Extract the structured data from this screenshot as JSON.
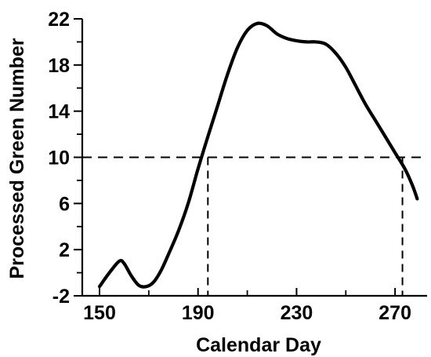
{
  "chart_data": {
    "type": "line",
    "title": "",
    "xlabel": "Calendar Day",
    "ylabel": "Processed Green Number",
    "xlim": [
      143,
      283
    ],
    "ylim": [
      -2,
      22
    ],
    "x_ticks": [
      150,
      190,
      230,
      270
    ],
    "x_tick_labels": [
      "150",
      "190",
      "230",
      "270"
    ],
    "x_minor_ticks": [
      170,
      210,
      250
    ],
    "y_ticks": [
      -2,
      2,
      6,
      10,
      14,
      18,
      22
    ],
    "y_tick_labels": [
      "-2",
      "2",
      "6",
      "10",
      "14",
      "18",
      "22"
    ],
    "y_minor_ticks": [
      0,
      4,
      8,
      12,
      16,
      20
    ],
    "grid": false,
    "series": [
      {
        "x": [
          150,
          154,
          158,
          160,
          163,
          166,
          169,
          172,
          175,
          178,
          182,
          186,
          190,
          194,
          198,
          202,
          206,
          210,
          214,
          218,
          222,
          226,
          230,
          234,
          238,
          242,
          246,
          250,
          254,
          258,
          262,
          266,
          270,
          274,
          277,
          279
        ],
        "y": [
          -1.2,
          0.0,
          1.0,
          0.8,
          -0.3,
          -1.1,
          -1.2,
          -0.8,
          0.2,
          1.6,
          3.6,
          6.0,
          9.0,
          11.8,
          14.5,
          17.2,
          19.5,
          21.0,
          21.6,
          21.4,
          20.7,
          20.3,
          20.1,
          20.0,
          20.0,
          19.8,
          19.0,
          17.8,
          16.2,
          14.6,
          13.2,
          11.8,
          10.4,
          9.0,
          7.6,
          6.4
        ],
        "values": [
          -1.2,
          0.0,
          1.0,
          0.8,
          -0.3,
          -1.1,
          -1.2,
          -0.8,
          0.2,
          1.6,
          3.6,
          6.0,
          9.0,
          11.8,
          14.5,
          17.2,
          19.5,
          21.0,
          21.6,
          21.4,
          20.7,
          20.3,
          20.1,
          20.0,
          20.0,
          19.8,
          19.0,
          17.8,
          16.2,
          14.6,
          13.2,
          11.8,
          10.4,
          9.0,
          7.6,
          6.4
        ]
      }
    ],
    "reference_lines": [
      {
        "orientation": "horizontal",
        "value": 10,
        "style": "dashed"
      },
      {
        "orientation": "vertical",
        "value": 194,
        "from": -2,
        "to": 10,
        "style": "dashed"
      },
      {
        "orientation": "vertical",
        "value": 273,
        "from": -2,
        "to": 10,
        "style": "dashed"
      }
    ]
  }
}
